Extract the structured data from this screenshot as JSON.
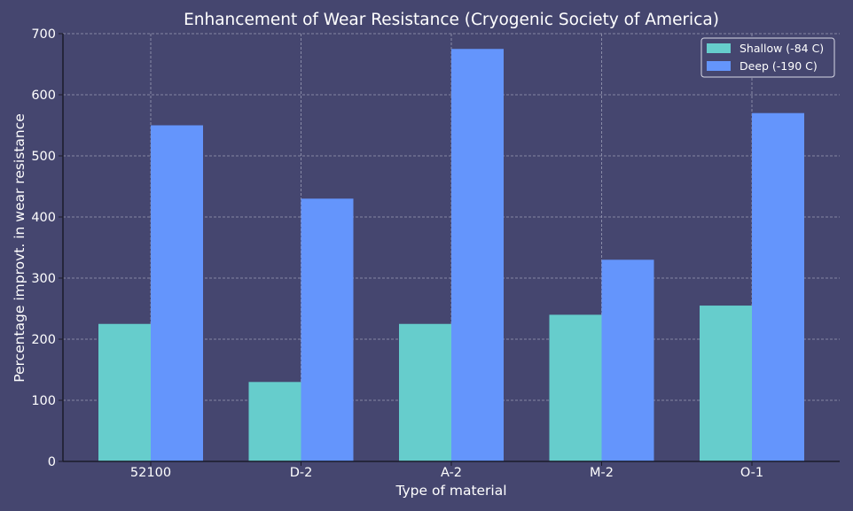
{
  "chart_data": {
    "type": "bar",
    "title": "Enhancement of Wear Resistance (Cryogenic Society of America)",
    "xlabel": "Type of material",
    "ylabel": "Percentage improvt. in wear resistance",
    "categories": [
      "52100",
      "D-2",
      "A-2",
      "M-2",
      "O-1"
    ],
    "series": [
      {
        "name": "Shallow (-84 C)",
        "values": [
          225,
          130,
          225,
          240,
          255
        ],
        "color": "#66cdcc"
      },
      {
        "name": "Deep (-190 C)",
        "values": [
          550,
          430,
          675,
          330,
          570
        ],
        "color": "#6495fc"
      }
    ],
    "ylim": [
      0,
      700
    ],
    "yticks": [
      0,
      100,
      200,
      300,
      400,
      500,
      600,
      700
    ],
    "grid": true,
    "legend_position": "top-right",
    "colors": {
      "background": "#45466f",
      "text": "#ffffff",
      "grid": "#9a9bb5",
      "axis": "#1b1b2a"
    }
  }
}
